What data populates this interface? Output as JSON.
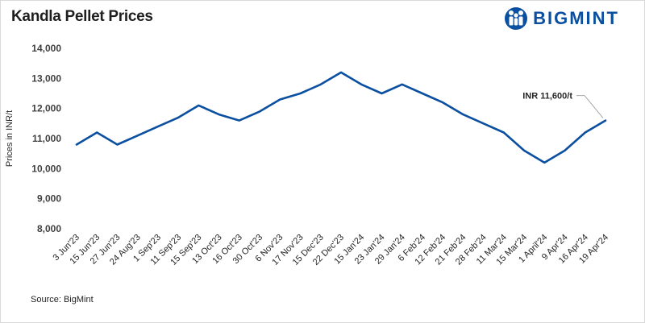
{
  "brand": {
    "name": "BIGMINT",
    "logo_icon": "bigmint-logo-icon"
  },
  "source": "Source: BigMint",
  "chart_data": {
    "type": "line",
    "title": "Kandla Pellet Prices",
    "xlabel": "",
    "ylabel": "Prices in INR/t",
    "ylim": [
      8000,
      14000
    ],
    "yticks": [
      8000,
      9000,
      10000,
      11000,
      12000,
      13000,
      14000
    ],
    "ytick_labels": [
      "8,000",
      "9,000",
      "10,000",
      "11,000",
      "12,000",
      "13,000",
      "14,000"
    ],
    "grid": false,
    "line_color": "#0b4fa0",
    "categories": [
      "3 Jun'23",
      "15 Jun'23",
      "27 Jun'23",
      "24 Aug'23",
      "1 Sep'23",
      "11 Sep'23",
      "15 Sep'23",
      "13 Oct'23",
      "16 Oct'23",
      "30 Oct'23",
      "6 Nov'23",
      "17 Nov'23",
      "15 Dec'23",
      "22 Dec'23",
      "15 Jan'24",
      "23 Jan'24",
      "29 Jan'24",
      "6 Feb'24",
      "12 Feb'24",
      "21 Feb'24",
      "28 Feb'24",
      "11 Mar'24",
      "15 Mar'24",
      "1 April'24",
      "9 Apr'24",
      "16 Apr'24",
      "19 Apr'24"
    ],
    "values": [
      10800,
      11200,
      10800,
      11100,
      11400,
      11700,
      12100,
      11800,
      11600,
      11900,
      12300,
      12500,
      12800,
      13200,
      12800,
      12500,
      12800,
      12500,
      12200,
      11800,
      11500,
      11200,
      10600,
      10200,
      10600,
      11200,
      11600
    ],
    "annotations": [
      {
        "text": "INR 11,600/t",
        "category": "19 Apr'24",
        "value": 11600
      }
    ]
  }
}
